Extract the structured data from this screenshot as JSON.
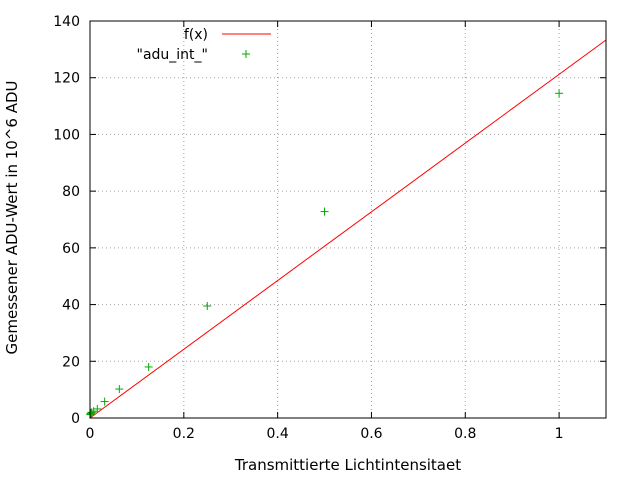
{
  "chart_data": {
    "type": "scatter",
    "title": "",
    "xlabel": "Transmittierte Lichtintensitaet",
    "ylabel": "Gemessener ADU-Wert in 10^6 ADU",
    "xlim": [
      0,
      1.1
    ],
    "ylim": [
      0,
      140
    ],
    "x_ticks": [
      0,
      0.2,
      0.4,
      0.6,
      0.8,
      1
    ],
    "x_tick_labels": [
      "0",
      "0.2",
      "0.4",
      "0.6",
      "0.8",
      "1"
    ],
    "y_ticks": [
      0,
      20,
      40,
      60,
      80,
      100,
      120,
      140
    ],
    "y_tick_labels": [
      "0",
      "20",
      "40",
      "60",
      "80",
      "100",
      "120",
      "140"
    ],
    "grid": true,
    "legend_position": "top-left",
    "series": [
      {
        "name": "f(x)",
        "kind": "line",
        "color": "#ff0000",
        "x": [
          0,
          1.1
        ],
        "y": [
          0,
          133.3
        ]
      },
      {
        "name": "\"adu_int_\"",
        "kind": "points",
        "marker": "plus",
        "color": "#00aa00",
        "x": [
          0.0005,
          0.001,
          0.002,
          0.0039,
          0.0078,
          0.0156,
          0.03125,
          0.0625,
          0.125,
          0.25,
          0.5,
          1
        ],
        "y": [
          1.2,
          1.5,
          1.8,
          2.0,
          2.4,
          3.2,
          5.8,
          10.2,
          18.0,
          39.5,
          72.8,
          114.5
        ]
      }
    ]
  }
}
